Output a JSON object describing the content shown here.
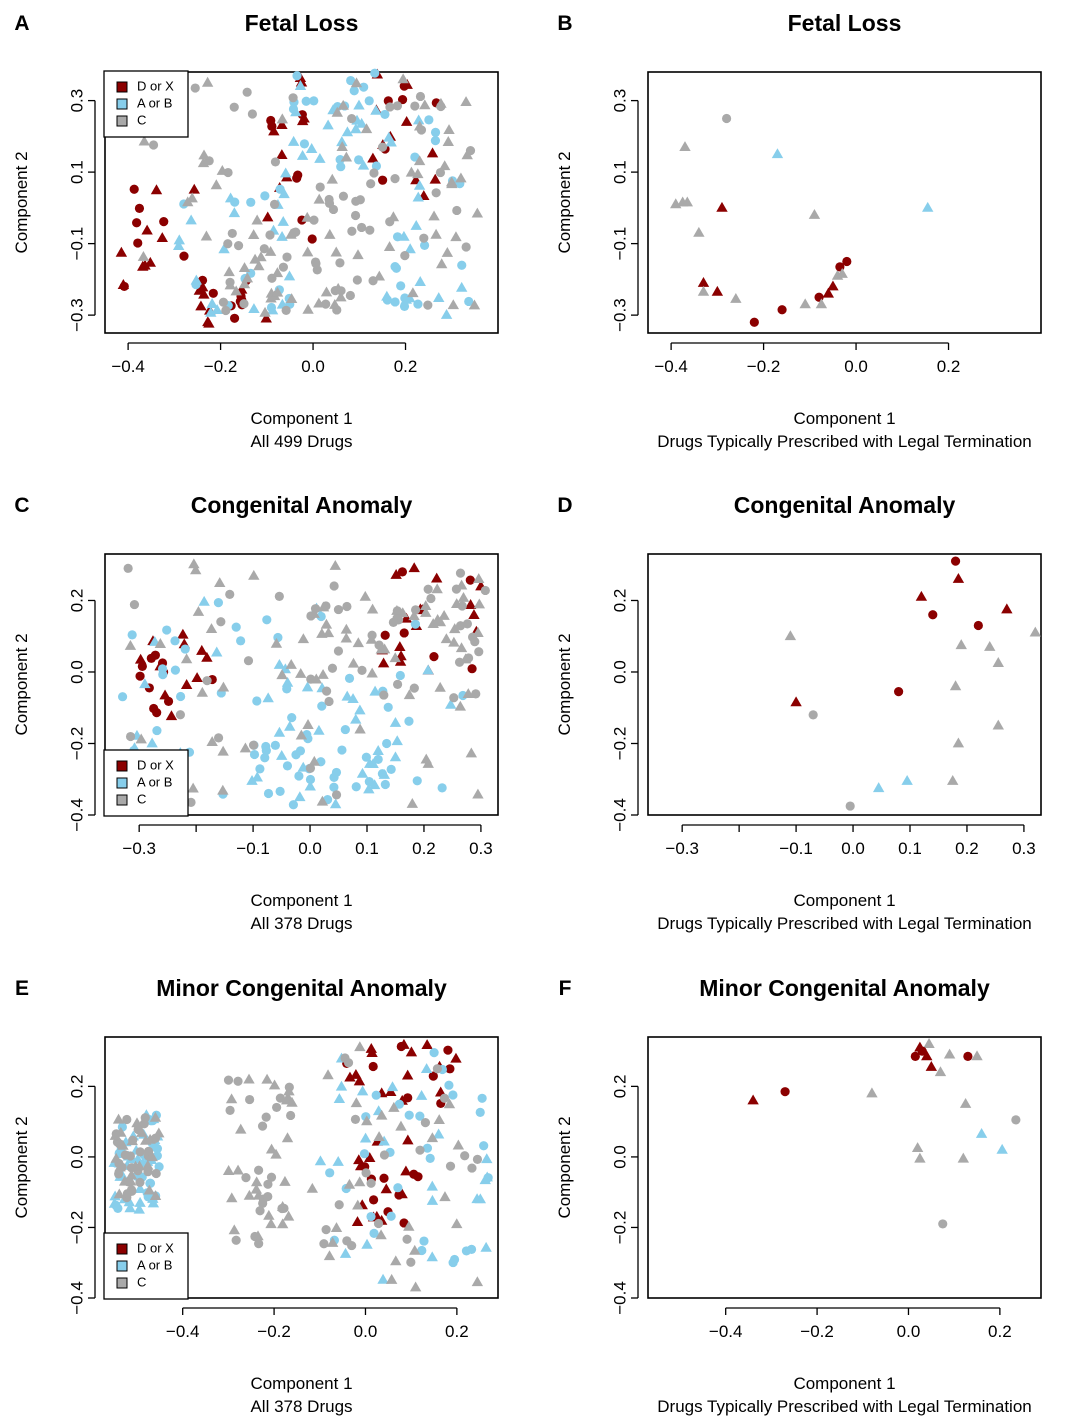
{
  "colors": {
    "D or X": "#8b0000",
    "A or B": "#87ceeb",
    "C": "#a9a9a9"
  },
  "chart_data": [
    {
      "id": "A",
      "type": "scatter",
      "title": "Fetal Loss",
      "xlabel": "Component 1",
      "subtitle": "All 499 Drugs",
      "ylabel": "Component 2",
      "xlim": [
        -0.45,
        0.4
      ],
      "ylim": [
        -0.35,
        0.38
      ],
      "xticks": [
        {
          "v": -0.4,
          "label": "−0.4"
        },
        {
          "v": -0.2,
          "label": "−0.2"
        },
        {
          "v": 0.0,
          "label": "0.0"
        },
        {
          "v": 0.2,
          "label": "0.2"
        }
      ],
      "yticks": [
        {
          "v": -0.3,
          "label": "−0.3"
        },
        {
          "v": -0.1,
          "label": "−0.1"
        },
        {
          "v": 0.1,
          "label": "0.1"
        },
        {
          "v": 0.3,
          "label": "0.3"
        }
      ],
      "legend": {
        "position": "top-left",
        "entries": [
          "D or X",
          "A or B",
          "C"
        ]
      },
      "sampled": true,
      "cloud": [
        {
          "category": "D or X",
          "n": 70,
          "seed": 11,
          "boxes": [
            [
              -0.42,
              -0.25,
              -0.22,
              0.22
            ],
            [
              -0.25,
              -0.1,
              -0.33,
              -0.18
            ],
            [
              -0.1,
              0.0,
              -0.1,
              0.38
            ],
            [
              0.12,
              0.32,
              0.0,
              0.38
            ]
          ]
        },
        {
          "category": "A or B",
          "n": 100,
          "seed": 23,
          "boxes": [
            [
              0.15,
              0.34,
              -0.3,
              0.3
            ],
            [
              -0.3,
              -0.05,
              -0.3,
              0.1
            ],
            [
              -0.05,
              0.15,
              0.1,
              0.38
            ]
          ]
        },
        {
          "category": "C",
          "n": 150,
          "seed": 37,
          "boxes": [
            [
              -0.42,
              0.36,
              -0.3,
              0.38
            ],
            [
              -0.2,
              0.1,
              -0.3,
              0.0
            ],
            [
              0.0,
              0.35,
              -0.3,
              0.3
            ]
          ]
        }
      ]
    },
    {
      "id": "B",
      "type": "scatter",
      "title": "Fetal Loss",
      "xlabel": "Component 1",
      "subtitle": "Drugs Typically Prescribed with Legal Termination",
      "ylabel": "Component 2",
      "xlim": [
        -0.45,
        0.4
      ],
      "ylim": [
        -0.35,
        0.38
      ],
      "xticks": [
        {
          "v": -0.4,
          "label": "−0.4"
        },
        {
          "v": -0.2,
          "label": "−0.2"
        },
        {
          "v": 0.0,
          "label": "0.0"
        },
        {
          "v": 0.2,
          "label": "0.2"
        }
      ],
      "yticks": [
        {
          "v": -0.3,
          "label": "−0.3"
        },
        {
          "v": -0.1,
          "label": "−0.1"
        },
        {
          "v": 0.1,
          "label": "0.1"
        },
        {
          "v": 0.3,
          "label": "0.3"
        }
      ],
      "points": [
        {
          "x": -0.28,
          "y": 0.25,
          "category": "C",
          "shape": "circle"
        },
        {
          "x": -0.37,
          "y": 0.17,
          "category": "C",
          "shape": "triangle"
        },
        {
          "x": -0.17,
          "y": 0.15,
          "category": "A or B",
          "shape": "triangle"
        },
        {
          "x": -0.39,
          "y": 0.01,
          "category": "C",
          "shape": "triangle"
        },
        {
          "x": -0.375,
          "y": 0.015,
          "category": "C",
          "shape": "triangle"
        },
        {
          "x": -0.365,
          "y": 0.015,
          "category": "C",
          "shape": "triangle"
        },
        {
          "x": -0.29,
          "y": 0.0,
          "category": "D or X",
          "shape": "triangle"
        },
        {
          "x": -0.34,
          "y": -0.07,
          "category": "C",
          "shape": "triangle"
        },
        {
          "x": -0.09,
          "y": -0.02,
          "category": "C",
          "shape": "triangle"
        },
        {
          "x": 0.155,
          "y": 0.0,
          "category": "A or B",
          "shape": "triangle"
        },
        {
          "x": -0.33,
          "y": -0.21,
          "category": "D or X",
          "shape": "triangle"
        },
        {
          "x": -0.33,
          "y": -0.235,
          "category": "C",
          "shape": "triangle"
        },
        {
          "x": -0.3,
          "y": -0.235,
          "category": "D or X",
          "shape": "triangle"
        },
        {
          "x": -0.26,
          "y": -0.255,
          "category": "C",
          "shape": "triangle"
        },
        {
          "x": -0.22,
          "y": -0.32,
          "category": "D or X",
          "shape": "circle"
        },
        {
          "x": -0.16,
          "y": -0.285,
          "category": "D or X",
          "shape": "circle"
        },
        {
          "x": -0.11,
          "y": -0.27,
          "category": "C",
          "shape": "triangle"
        },
        {
          "x": -0.08,
          "y": -0.25,
          "category": "D or X",
          "shape": "circle"
        },
        {
          "x": -0.075,
          "y": -0.27,
          "category": "C",
          "shape": "triangle"
        },
        {
          "x": -0.06,
          "y": -0.24,
          "category": "D or X",
          "shape": "triangle"
        },
        {
          "x": -0.05,
          "y": -0.22,
          "category": "D or X",
          "shape": "triangle"
        },
        {
          "x": -0.04,
          "y": -0.19,
          "category": "C",
          "shape": "triangle"
        },
        {
          "x": -0.035,
          "y": -0.165,
          "category": "D or X",
          "shape": "circle"
        },
        {
          "x": -0.03,
          "y": -0.185,
          "category": "C",
          "shape": "triangle"
        },
        {
          "x": -0.02,
          "y": -0.15,
          "category": "D or X",
          "shape": "circle"
        }
      ]
    },
    {
      "id": "C",
      "type": "scatter",
      "title": "Congenital Anomaly",
      "xlabel": "Component 1",
      "subtitle": "All 378 Drugs",
      "ylabel": "Component 2",
      "xlim": [
        -0.36,
        0.33
      ],
      "ylim": [
        -0.4,
        0.33
      ],
      "xticks": [
        {
          "v": -0.3,
          "label": "−0.3"
        },
        {
          "v": -0.1,
          "label": "−0.1"
        },
        {
          "v": 0.0,
          "label": "0.0"
        },
        {
          "v": 0.1,
          "label": "0.1"
        },
        {
          "v": 0.2,
          "label": "0.2"
        },
        {
          "v": 0.3,
          "label": "0.3"
        }
      ],
      "xgaptick": -0.2,
      "yticks": [
        {
          "v": -0.4,
          "label": "−0.4"
        },
        {
          "v": -0.2,
          "label": "−0.2"
        },
        {
          "v": 0.0,
          "label": "0.0"
        },
        {
          "v": 0.2,
          "label": "0.2"
        }
      ],
      "legend": {
        "position": "bottom-left",
        "entries": [
          "D or X",
          "A or B",
          "C"
        ]
      },
      "sampled": true,
      "cloud": [
        {
          "category": "D or X",
          "n": 45,
          "seed": 51,
          "boxes": [
            [
              0.1,
              0.3,
              0.0,
              0.3
            ],
            [
              -0.3,
              -0.15,
              -0.13,
              0.12
            ]
          ]
        },
        {
          "category": "A or B",
          "n": 110,
          "seed": 63,
          "boxes": [
            [
              -0.35,
              0.28,
              -0.35,
              0.2
            ],
            [
              -0.1,
              0.15,
              -0.38,
              0.0
            ]
          ]
        },
        {
          "category": "C",
          "n": 130,
          "seed": 77,
          "boxes": [
            [
              -0.35,
              0.32,
              -0.38,
              0.32
            ],
            [
              0.0,
              0.3,
              -0.1,
              0.25
            ]
          ]
        }
      ]
    },
    {
      "id": "D",
      "type": "scatter",
      "title": "Congenital Anomaly",
      "xlabel": "Component 1",
      "subtitle": "Drugs Typically Prescribed with Legal Termination",
      "ylabel": "Component 2",
      "xlim": [
        -0.36,
        0.33
      ],
      "ylim": [
        -0.4,
        0.33
      ],
      "xticks": [
        {
          "v": -0.3,
          "label": "−0.3"
        },
        {
          "v": -0.1,
          "label": "−0.1"
        },
        {
          "v": 0.0,
          "label": "0.0"
        },
        {
          "v": 0.1,
          "label": "0.1"
        },
        {
          "v": 0.2,
          "label": "0.2"
        },
        {
          "v": 0.3,
          "label": "0.3"
        }
      ],
      "xgaptick": -0.2,
      "yticks": [
        {
          "v": -0.4,
          "label": "−0.4"
        },
        {
          "v": -0.2,
          "label": "−0.2"
        },
        {
          "v": 0.0,
          "label": "0.0"
        },
        {
          "v": 0.2,
          "label": "0.2"
        }
      ],
      "points": [
        {
          "x": 0.18,
          "y": 0.31,
          "category": "D or X",
          "shape": "circle"
        },
        {
          "x": 0.185,
          "y": 0.26,
          "category": "D or X",
          "shape": "triangle"
        },
        {
          "x": 0.12,
          "y": 0.21,
          "category": "D or X",
          "shape": "triangle"
        },
        {
          "x": 0.14,
          "y": 0.16,
          "category": "D or X",
          "shape": "circle"
        },
        {
          "x": 0.27,
          "y": 0.175,
          "category": "D or X",
          "shape": "triangle"
        },
        {
          "x": 0.22,
          "y": 0.13,
          "category": "D or X",
          "shape": "circle"
        },
        {
          "x": -0.11,
          "y": 0.1,
          "category": "C",
          "shape": "triangle"
        },
        {
          "x": 0.32,
          "y": 0.11,
          "category": "C",
          "shape": "triangle"
        },
        {
          "x": 0.19,
          "y": 0.075,
          "category": "C",
          "shape": "triangle"
        },
        {
          "x": 0.24,
          "y": 0.07,
          "category": "C",
          "shape": "triangle"
        },
        {
          "x": 0.255,
          "y": 0.025,
          "category": "C",
          "shape": "triangle"
        },
        {
          "x": 0.18,
          "y": -0.04,
          "category": "C",
          "shape": "triangle"
        },
        {
          "x": 0.08,
          "y": -0.055,
          "category": "D or X",
          "shape": "circle"
        },
        {
          "x": -0.1,
          "y": -0.085,
          "category": "D or X",
          "shape": "triangle"
        },
        {
          "x": -0.07,
          "y": -0.12,
          "category": "C",
          "shape": "circle"
        },
        {
          "x": 0.255,
          "y": -0.15,
          "category": "C",
          "shape": "triangle"
        },
        {
          "x": 0.185,
          "y": -0.2,
          "category": "C",
          "shape": "triangle"
        },
        {
          "x": 0.095,
          "y": -0.305,
          "category": "A or B",
          "shape": "triangle"
        },
        {
          "x": 0.175,
          "y": -0.305,
          "category": "C",
          "shape": "triangle"
        },
        {
          "x": 0.045,
          "y": -0.325,
          "category": "A or B",
          "shape": "triangle"
        },
        {
          "x": -0.005,
          "y": -0.375,
          "category": "C",
          "shape": "circle"
        }
      ]
    },
    {
      "id": "E",
      "type": "scatter",
      "title": "Minor Congenital Anomaly",
      "xlabel": "Component 1",
      "subtitle": "All 378 Drugs",
      "ylabel": "Component 2",
      "xlim": [
        -0.57,
        0.29
      ],
      "ylim": [
        -0.4,
        0.34
      ],
      "xticks": [
        {
          "v": -0.4,
          "label": "−0.4"
        },
        {
          "v": -0.2,
          "label": "−0.2"
        },
        {
          "v": 0.0,
          "label": "0.0"
        },
        {
          "v": 0.2,
          "label": "0.2"
        }
      ],
      "yticks": [
        {
          "v": -0.4,
          "label": "−0.4"
        },
        {
          "v": -0.2,
          "label": "−0.2"
        },
        {
          "v": 0.0,
          "label": "0.0"
        },
        {
          "v": 0.2,
          "label": "0.2"
        }
      ],
      "legend": {
        "position": "bottom-left",
        "entries": [
          "D or X",
          "A or B",
          "C"
        ]
      },
      "sampled": true,
      "cloud": [
        {
          "category": "D or X",
          "n": 45,
          "seed": 81,
          "boxes": [
            [
              -0.05,
              0.2,
              0.15,
              0.32
            ],
            [
              -0.02,
              0.12,
              -0.2,
              0.05
            ]
          ]
        },
        {
          "category": "A or B",
          "n": 110,
          "seed": 93,
          "boxes": [
            [
              -0.1,
              0.27,
              -0.35,
              0.3
            ],
            [
              -0.55,
              -0.45,
              -0.15,
              0.12
            ]
          ]
        },
        {
          "category": "C",
          "n": 150,
          "seed": 101,
          "boxes": [
            [
              -0.12,
              0.27,
              -0.38,
              0.32
            ],
            [
              -0.55,
              -0.45,
              -0.12,
              0.12
            ],
            [
              -0.3,
              -0.15,
              -0.25,
              0.22
            ]
          ]
        }
      ]
    },
    {
      "id": "F",
      "type": "scatter",
      "title": "Minor Congenital Anomaly",
      "xlabel": "Component 1",
      "subtitle": "Drugs Typically Prescribed with Legal Termination",
      "ylabel": "Component 2",
      "xlim": [
        -0.57,
        0.29
      ],
      "ylim": [
        -0.4,
        0.34
      ],
      "xticks": [
        {
          "v": -0.4,
          "label": "−0.4"
        },
        {
          "v": -0.2,
          "label": "−0.2"
        },
        {
          "v": 0.0,
          "label": "0.0"
        },
        {
          "v": 0.2,
          "label": "0.2"
        }
      ],
      "yticks": [
        {
          "v": -0.4,
          "label": "−0.4"
        },
        {
          "v": -0.2,
          "label": "−0.2"
        },
        {
          "v": 0.0,
          "label": "0.0"
        },
        {
          "v": 0.2,
          "label": "0.2"
        }
      ],
      "points": [
        {
          "x": 0.045,
          "y": 0.32,
          "category": "C",
          "shape": "triangle"
        },
        {
          "x": 0.025,
          "y": 0.31,
          "category": "D or X",
          "shape": "triangle"
        },
        {
          "x": 0.03,
          "y": 0.3,
          "category": "D or X",
          "shape": "circle"
        },
        {
          "x": 0.015,
          "y": 0.285,
          "category": "D or X",
          "shape": "circle"
        },
        {
          "x": 0.04,
          "y": 0.285,
          "category": "D or X",
          "shape": "triangle"
        },
        {
          "x": 0.09,
          "y": 0.29,
          "category": "C",
          "shape": "triangle"
        },
        {
          "x": 0.13,
          "y": 0.285,
          "category": "D or X",
          "shape": "circle"
        },
        {
          "x": 0.15,
          "y": 0.285,
          "category": "C",
          "shape": "triangle"
        },
        {
          "x": 0.05,
          "y": 0.255,
          "category": "D or X",
          "shape": "triangle"
        },
        {
          "x": 0.07,
          "y": 0.24,
          "category": "C",
          "shape": "triangle"
        },
        {
          "x": -0.27,
          "y": 0.185,
          "category": "D or X",
          "shape": "circle"
        },
        {
          "x": -0.34,
          "y": 0.16,
          "category": "D or X",
          "shape": "triangle"
        },
        {
          "x": -0.08,
          "y": 0.18,
          "category": "C",
          "shape": "triangle"
        },
        {
          "x": 0.125,
          "y": 0.15,
          "category": "C",
          "shape": "triangle"
        },
        {
          "x": 0.235,
          "y": 0.105,
          "category": "C",
          "shape": "circle"
        },
        {
          "x": 0.16,
          "y": 0.065,
          "category": "A or B",
          "shape": "triangle"
        },
        {
          "x": 0.02,
          "y": 0.025,
          "category": "C",
          "shape": "triangle"
        },
        {
          "x": 0.205,
          "y": 0.02,
          "category": "A or B",
          "shape": "triangle"
        },
        {
          "x": 0.025,
          "y": -0.005,
          "category": "C",
          "shape": "triangle"
        },
        {
          "x": 0.12,
          "y": -0.005,
          "category": "C",
          "shape": "triangle"
        },
        {
          "x": 0.075,
          "y": -0.19,
          "category": "C",
          "shape": "circle"
        }
      ]
    }
  ]
}
